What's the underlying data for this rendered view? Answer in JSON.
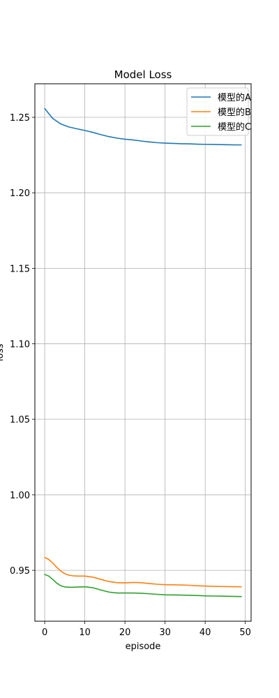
{
  "chart_data": {
    "type": "line",
    "title": "Model Loss",
    "xlabel": "episode",
    "ylabel": "loss",
    "xlim": [
      -2.45,
      51.45
    ],
    "ylim": [
      0.9163,
      1.2722
    ],
    "xticks": [
      0,
      10,
      20,
      30,
      40,
      50
    ],
    "yticks": [
      0.95,
      1.0,
      1.05,
      1.1,
      1.15,
      1.2,
      1.25
    ],
    "xtick_labels": [
      "0",
      "10",
      "20",
      "30",
      "40",
      "50"
    ],
    "ytick_labels": [
      "0.95",
      "1.00",
      "1.05",
      "1.10",
      "1.15",
      "1.20",
      "1.25"
    ],
    "grid": true,
    "legend_position": "top-right",
    "series": [
      {
        "name": "模型的A",
        "color": "#1f77b4",
        "x": [
          0,
          2,
          4,
          6,
          8,
          10,
          12,
          14,
          16,
          18,
          20,
          22,
          24,
          26,
          28,
          30,
          32,
          34,
          36,
          38,
          40,
          42,
          44,
          46,
          49
        ],
        "y": [
          1.2558,
          1.2492,
          1.2456,
          1.2436,
          1.2424,
          1.2413,
          1.24,
          1.2385,
          1.2372,
          1.2362,
          1.2355,
          1.235,
          1.2343,
          1.2337,
          1.2332,
          1.2329,
          1.2327,
          1.2325,
          1.2324,
          1.2322,
          1.2321,
          1.232,
          1.2319,
          1.2318,
          1.2317
        ]
      },
      {
        "name": "模型的B",
        "color": "#ff7f0e",
        "x": [
          0,
          1,
          2,
          3,
          4,
          5,
          6,
          7,
          8,
          10,
          12,
          14,
          16,
          18,
          20,
          22,
          24,
          26,
          28,
          30,
          32,
          34,
          36,
          38,
          40,
          42,
          44,
          46,
          49
        ],
        "y": [
          0.9585,
          0.9572,
          0.9548,
          0.952,
          0.9495,
          0.9478,
          0.9468,
          0.9464,
          0.9462,
          0.9462,
          0.9455,
          0.944,
          0.9426,
          0.9418,
          0.9417,
          0.942,
          0.9418,
          0.9413,
          0.9408,
          0.9405,
          0.9404,
          0.9403,
          0.9401,
          0.9398,
          0.9396,
          0.9394,
          0.9393,
          0.9392,
          0.9391
        ]
      },
      {
        "name": "模型的C",
        "color": "#2ca02c",
        "x": [
          0,
          1,
          2,
          3,
          4,
          5,
          6,
          7,
          8,
          10,
          12,
          14,
          16,
          18,
          20,
          22,
          24,
          26,
          28,
          30,
          32,
          34,
          36,
          38,
          40,
          42,
          44,
          46,
          49
        ],
        "y": [
          0.9473,
          0.9462,
          0.944,
          0.9415,
          0.9398,
          0.939,
          0.9388,
          0.9388,
          0.9389,
          0.9391,
          0.9385,
          0.937,
          0.9356,
          0.935,
          0.935,
          0.935,
          0.9348,
          0.9345,
          0.9341,
          0.9338,
          0.9337,
          0.9336,
          0.9335,
          0.9333,
          0.9331,
          0.933,
          0.9329,
          0.9328,
          0.9326
        ]
      }
    ]
  }
}
